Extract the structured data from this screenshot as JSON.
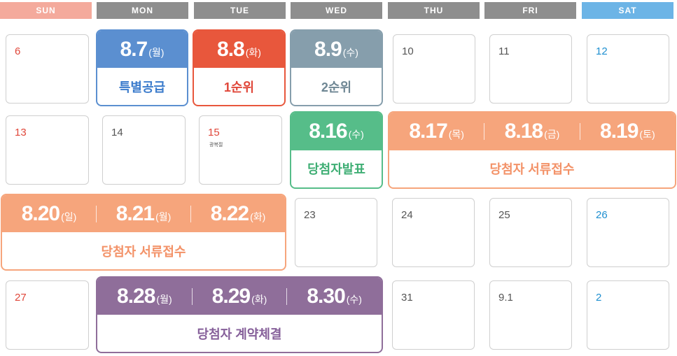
{
  "weekdays": [
    "SUN",
    "MON",
    "TUE",
    "WED",
    "THU",
    "FRI",
    "SAT"
  ],
  "colors": {
    "sun_header": "#f4aa9c",
    "weekday_header": "#8e8e8e",
    "sat_header": "#6cb4e6",
    "sun_text": "#e0473a",
    "weekday_text": "#555555",
    "sat_text": "#1e8fd0",
    "blue": "#5b8fd0",
    "red": "#e8573c",
    "slate": "#869eac",
    "green": "#56bd89",
    "orange": "#f6a57c",
    "purple": "#8f6e9a"
  },
  "days": {
    "d6": "6",
    "d10": "10",
    "d11": "11",
    "d12": "12",
    "d13": "13",
    "d14": "14",
    "d15": "15",
    "d23": "23",
    "d24": "24",
    "d25": "25",
    "d26": "26",
    "d27": "27",
    "d31": "31",
    "d9_1": "9.1",
    "d2": "2"
  },
  "holiday_15": "광복절",
  "events": {
    "e87": {
      "date": "8.7",
      "day": "(월)",
      "label": "특별공급"
    },
    "e88": {
      "date": "8.8",
      "day": "(화)",
      "label": "1순위"
    },
    "e89": {
      "date": "8.9",
      "day": "(수)",
      "label": "2순위"
    },
    "e816": {
      "date": "8.16",
      "day": "(수)",
      "label": "당첨자발표"
    },
    "docs1": {
      "dates": [
        {
          "date": "8.17",
          "day": "(목)"
        },
        {
          "date": "8.18",
          "day": "(금)"
        },
        {
          "date": "8.19",
          "day": "(토)"
        }
      ],
      "label": "당첨자 서류접수"
    },
    "docs2": {
      "dates": [
        {
          "date": "8.20",
          "day": "(일)"
        },
        {
          "date": "8.21",
          "day": "(월)"
        },
        {
          "date": "8.22",
          "day": "(화)"
        }
      ],
      "label": "당첨자 서류접수"
    },
    "contract": {
      "dates": [
        {
          "date": "8.28",
          "day": "(월)"
        },
        {
          "date": "8.29",
          "day": "(화)"
        },
        {
          "date": "8.30",
          "day": "(수)"
        }
      ],
      "label": "당첨자 계약체결"
    }
  }
}
